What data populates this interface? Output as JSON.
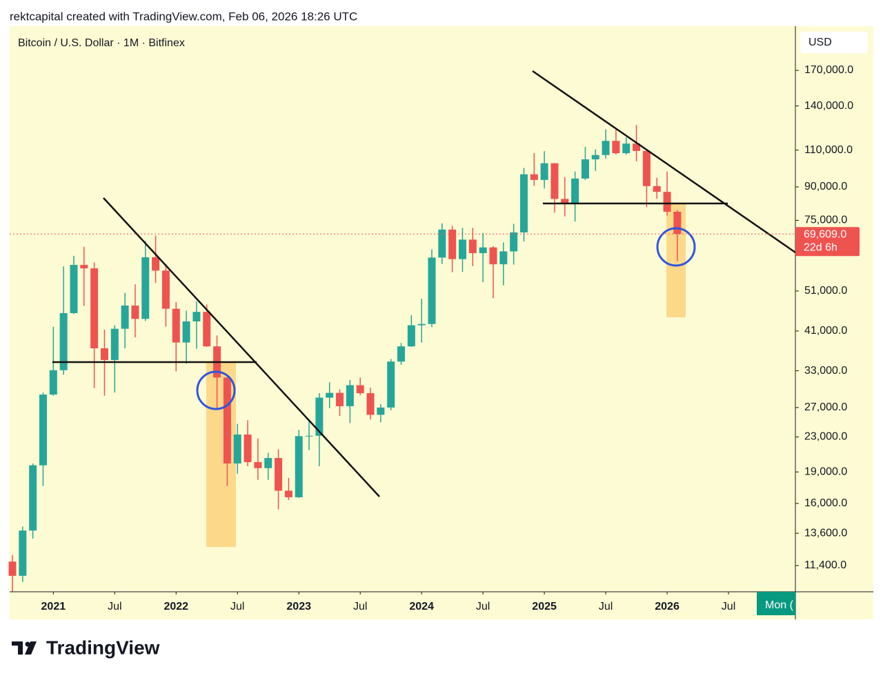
{
  "header": "rektcapital created with TradingView.com, Feb 06, 2026 18:26 UTC",
  "chart_data": {
    "type": "candlestick",
    "title": "Bitcoin / U.S. Dollar · 1M · Bitfinex",
    "currency": "USD",
    "log_scale": true,
    "up_color": "#26a69a",
    "down_color": "#ef5350",
    "x": [
      "2020-09",
      "2020-10",
      "2020-11",
      "2020-12",
      "2021-01",
      "2021-02",
      "2021-03",
      "2021-04",
      "2021-05",
      "2021-06",
      "2021-07",
      "2021-08",
      "2021-09",
      "2021-10",
      "2021-11",
      "2021-12",
      "2022-01",
      "2022-02",
      "2022-03",
      "2022-04",
      "2022-05",
      "2022-06",
      "2022-07",
      "2022-08",
      "2022-09",
      "2022-10",
      "2022-11",
      "2022-12",
      "2023-01",
      "2023-02",
      "2023-03",
      "2023-04",
      "2023-05",
      "2023-06",
      "2023-07",
      "2023-08",
      "2023-09",
      "2023-10",
      "2023-11",
      "2023-12",
      "2024-01",
      "2024-02",
      "2024-03",
      "2024-04",
      "2024-05",
      "2024-06",
      "2024-07",
      "2024-08",
      "2024-09",
      "2024-10",
      "2024-11",
      "2024-12",
      "2025-01",
      "2025-02",
      "2025-03",
      "2025-04",
      "2025-05",
      "2025-06",
      "2025-07",
      "2025-08",
      "2025-09",
      "2025-10",
      "2025-11",
      "2025-12",
      "2026-01",
      "2026-02"
    ],
    "open": [
      11650,
      10780,
      13800,
      19700,
      28980,
      33100,
      45200,
      58800,
      57700,
      37300,
      35000,
      41500,
      47100,
      43800,
      61300,
      57000,
      46300,
      38500,
      43200,
      45500,
      37700,
      31800,
      19900,
      23300,
      20050,
      19400,
      20500,
      17150,
      16550,
      23100,
      23150,
      28500,
      29250,
      27200,
      30500,
      29200,
      25950,
      27000,
      34700,
      37700,
      42300,
      42600,
      61200,
      71300,
      60700,
      67500,
      62700,
      64700,
      59000,
      63300,
      70200,
      96400,
      93500,
      102400,
      84300,
      82500,
      94200,
      104600,
      107100,
      115700,
      108200,
      114000,
      109500,
      90400,
      87600,
      78600
    ],
    "high": [
      12070,
      14100,
      19900,
      29300,
      41950,
      58350,
      61800,
      64900,
      59600,
      41300,
      42300,
      50500,
      52900,
      67000,
      69000,
      59100,
      48000,
      45800,
      48200,
      47400,
      40000,
      31900,
      24700,
      25200,
      22800,
      21100,
      21500,
      18400,
      23900,
      25200,
      29200,
      31000,
      29800,
      31400,
      31800,
      30100,
      27500,
      35200,
      38400,
      44700,
      48900,
      64000,
      73800,
      72800,
      71950,
      72000,
      70000,
      65100,
      66500,
      73600,
      99800,
      108300,
      109400,
      102500,
      95000,
      97900,
      112000,
      110500,
      123200,
      124400,
      117900,
      126200,
      110600,
      94600,
      97900,
      79300
    ],
    "low": [
      9880,
      10430,
      13200,
      17600,
      28800,
      32300,
      45000,
      47000,
      30000,
      28800,
      29300,
      37300,
      39600,
      43300,
      53300,
      42000,
      32900,
      34300,
      37200,
      37600,
      26700,
      17600,
      18800,
      19600,
      18200,
      18200,
      15500,
      16300,
      16500,
      21400,
      19600,
      26900,
      25800,
      24800,
      28900,
      25300,
      24900,
      26600,
      34100,
      37600,
      38500,
      41900,
      59100,
      56500,
      56600,
      58400,
      53500,
      49000,
      52600,
      58900,
      66800,
      90500,
      89200,
      78200,
      76600,
      74500,
      93400,
      98200,
      105100,
      107400,
      107300,
      103500,
      80600,
      84400,
      77000,
      60000
    ],
    "close": [
      10780,
      13800,
      19700,
      28980,
      33100,
      45200,
      58800,
      57700,
      37300,
      35000,
      41500,
      47100,
      43800,
      61300,
      57000,
      46300,
      38500,
      43200,
      45500,
      37700,
      31800,
      19900,
      23300,
      20050,
      19400,
      20500,
      17150,
      16550,
      23100,
      23150,
      28500,
      29250,
      27200,
      30500,
      29200,
      25950,
      27000,
      34700,
      37700,
      42300,
      42600,
      61200,
      71300,
      60700,
      67500,
      62700,
      64700,
      59000,
      63300,
      70200,
      96400,
      93500,
      102400,
      84300,
      82500,
      94200,
      104600,
      107100,
      115700,
      108200,
      114000,
      109500,
      90400,
      87600,
      78600,
      69609
    ],
    "xlim": [
      "2020-09",
      "2027-01"
    ],
    "xticks": [
      {
        "value": "2021-01",
        "label": "2021"
      },
      {
        "value": "2021-07",
        "label": "Jul"
      },
      {
        "value": "2022-01",
        "label": "2022"
      },
      {
        "value": "2022-07",
        "label": "Jul"
      },
      {
        "value": "2023-01",
        "label": "2023"
      },
      {
        "value": "2023-07",
        "label": "Jul"
      },
      {
        "value": "2024-01",
        "label": "2024"
      },
      {
        "value": "2024-07",
        "label": "Jul"
      },
      {
        "value": "2025-01",
        "label": "2025"
      },
      {
        "value": "2025-07",
        "label": "Jul"
      },
      {
        "value": "2026-01",
        "label": "2026"
      },
      {
        "value": "2026-07",
        "label": "Jul"
      }
    ],
    "ylim": [
      9880,
      216300
    ],
    "yticks": [
      {
        "value": 170000,
        "label": "170,000.0"
      },
      {
        "value": 140000,
        "label": "140,000.0"
      },
      {
        "value": 110000,
        "label": "110,000.0"
      },
      {
        "value": 90000,
        "label": "90,000.0"
      },
      {
        "value": 75000,
        "label": "75,000.0"
      },
      {
        "value": 51000,
        "label": "51,000.0"
      },
      {
        "value": 41000,
        "label": "41,000.0"
      },
      {
        "value": 33000,
        "label": "33,000.0"
      },
      {
        "value": 27000,
        "label": "27,000.0"
      },
      {
        "value": 23000,
        "label": "23,000.0"
      },
      {
        "value": 19000,
        "label": "19,000.0"
      },
      {
        "value": 16000,
        "label": "16,000.0"
      },
      {
        "value": 13600,
        "label": "13,600.0"
      },
      {
        "value": 11400,
        "label": "11,400.0"
      }
    ],
    "last_price": {
      "value": 69609,
      "label": "69,609.0"
    },
    "countdown": "22d 6h",
    "crosshair_label": "Mon (",
    "grid": false
  },
  "footer": "TradingView"
}
